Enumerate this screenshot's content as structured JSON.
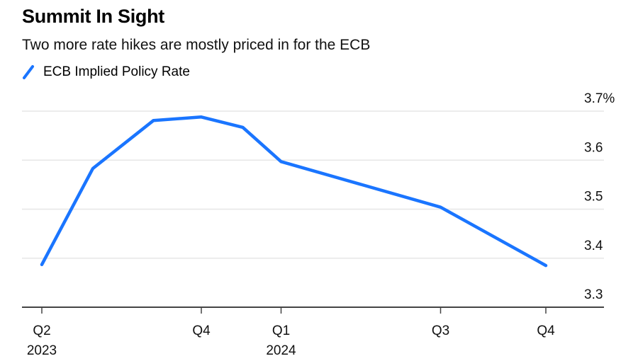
{
  "header": {
    "title": "Summit In Sight",
    "subtitle": "Two more rate hikes are mostly priced in for the ECB"
  },
  "legend": [
    {
      "label": "ECB Implied Policy Rate",
      "color": "#1a75ff"
    }
  ],
  "chart_data": {
    "type": "line",
    "title": "Summit In Sight",
    "subtitle": "Two more rate hikes are mostly priced in for the ECB",
    "xlabel": "",
    "ylabel": "",
    "grid": true,
    "legend_position": "top-left",
    "y_axis_position": "right",
    "ylim": [
      3.3,
      3.7
    ],
    "yticks": [
      3.3,
      3.4,
      3.5,
      3.6,
      3.7
    ],
    "ytick_labels": [
      "3.3",
      "3.4",
      "3.5",
      "3.6",
      "3.7%"
    ],
    "xlim": [
      2023.25,
      2024.98
    ],
    "xticks": [
      {
        "x": 2023.25,
        "label": "Q2",
        "sublabel": "2023"
      },
      {
        "x": 2023.75,
        "label": "Q4",
        "sublabel": ""
      },
      {
        "x": 2024.0,
        "label": "Q1",
        "sublabel": "2024"
      },
      {
        "x": 2024.5,
        "label": "Q3",
        "sublabel": ""
      },
      {
        "x": 2024.83,
        "label": "Q4",
        "sublabel": ""
      }
    ],
    "series": [
      {
        "name": "ECB Implied Policy Rate",
        "color": "#1a75ff",
        "x": [
          2023.25,
          2023.41,
          2023.6,
          2023.75,
          2023.88,
          2024.0,
          2024.5,
          2024.83
        ],
        "values": [
          3.387,
          3.583,
          3.681,
          3.688,
          3.667,
          3.597,
          3.504,
          3.385
        ]
      }
    ]
  }
}
